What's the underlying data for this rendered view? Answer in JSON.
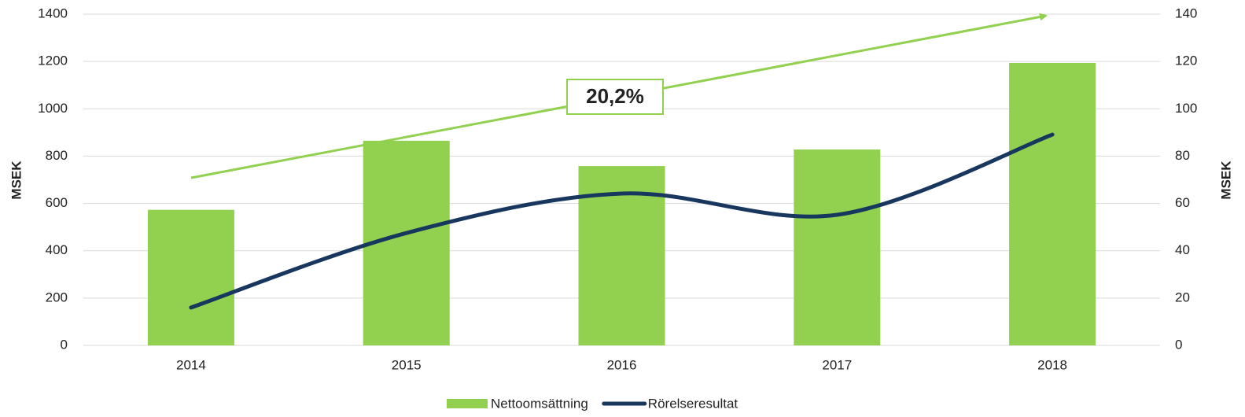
{
  "chart_data": {
    "type": "bar",
    "categories": [
      "2014",
      "2015",
      "2016",
      "2017",
      "2018"
    ],
    "series": [
      {
        "name": "Nettoomsättning",
        "color": "#92d050",
        "values": [
          573,
          865,
          758,
          828,
          1194
        ]
      },
      {
        "name": "Rörelseresultat",
        "color": "#17375e",
        "values": [
          16,
          47.5,
          64.2,
          55.2,
          89.1
        ],
        "axis": "y2",
        "type": "line"
      }
    ],
    "ylabel": "MSEK",
    "y2label": "MSEK",
    "ylim": [
      0,
      1400
    ],
    "yticks": [
      0,
      200,
      400,
      600,
      800,
      1000,
      1200,
      1400
    ],
    "y2lim": [
      0,
      140
    ],
    "y2ticks": [
      0,
      20,
      40,
      60,
      80,
      100,
      120,
      140
    ],
    "grid": true,
    "legend": "bottom",
    "annotation": "20,2%"
  }
}
